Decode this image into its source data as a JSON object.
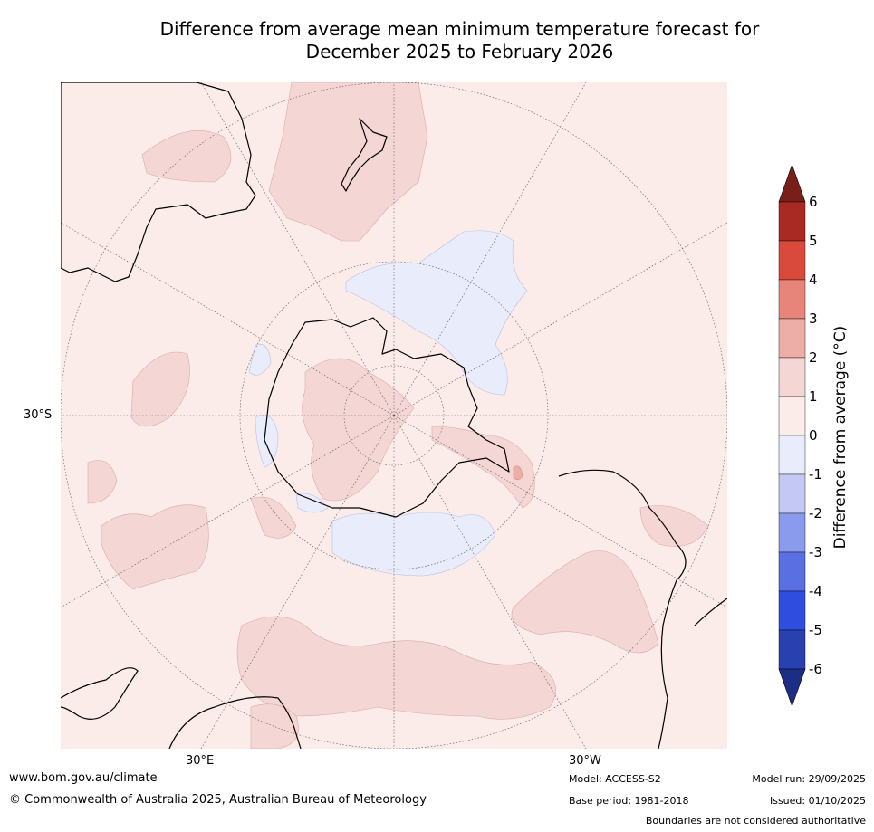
{
  "title": {
    "line1": "Difference from average mean minimum temperature forecast for",
    "line2": "December 2025 to February 2026"
  },
  "map": {
    "projection": "South polar stereographic",
    "lat_label": "30°S",
    "lon_labels": [
      "30°E",
      "30°W"
    ],
    "regions": [
      {
        "name": "Antarctica"
      },
      {
        "name": "Australia"
      },
      {
        "name": "New Zealand"
      },
      {
        "name": "South America"
      },
      {
        "name": "Africa"
      }
    ]
  },
  "legend": {
    "title": "Difference from average (°C)",
    "ticks": [
      "6",
      "5",
      "4",
      "3",
      "2",
      "1",
      "0",
      "-1",
      "-2",
      "-3",
      "-4",
      "-5",
      "-6"
    ],
    "colors": {
      "above6": "#7a1e1a",
      "c5_6": "#a82a22",
      "c4_5": "#d94a3c",
      "c3_4": "#e8857a",
      "c2_3": "#ecaea6",
      "c1_2": "#f4d6d4",
      "c0_1": "#fbebe9",
      "cm1_0": "#e8ecfb",
      "cm2_m1": "#c3c9f3",
      "cm3_m2": "#8a9aec",
      "cm4_m3": "#5a6fe2",
      "cm5_m4": "#2f4ee0",
      "cm6_m5": "#2840b0",
      "below_m6": "#1c2d85"
    }
  },
  "footer": {
    "website": "www.bom.gov.au/climate",
    "copyright": "© Commonwealth of Australia 2025, Australian Bureau of Meteorology",
    "model": "Model: ACCESS-S2",
    "base_period": "Base period: 1981-2018",
    "model_run": "Model run: 29/09/2025",
    "issued": "Issued: 01/10/2025",
    "disclaimer": "Boundaries are not considered authoritative"
  }
}
